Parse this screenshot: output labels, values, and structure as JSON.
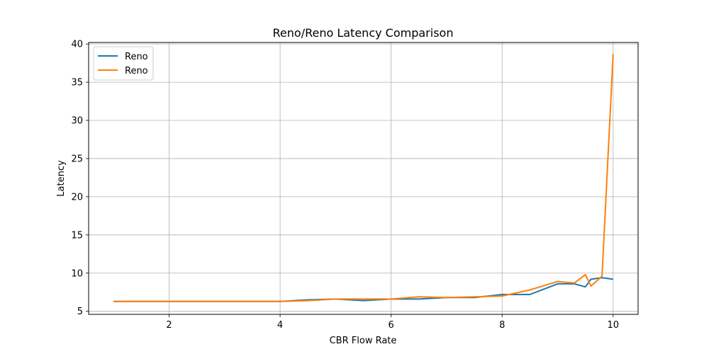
{
  "chart_data": {
    "type": "line",
    "title": "Reno/Reno Latency Comparison",
    "xlabel": "CBR Flow Rate",
    "ylabel": "Latency",
    "xlim": [
      0.55,
      10.45
    ],
    "ylim": [
      4.6,
      40.2
    ],
    "xticks": [
      2,
      4,
      6,
      8,
      10
    ],
    "yticks": [
      5,
      10,
      15,
      20,
      25,
      30,
      35,
      40
    ],
    "grid": true,
    "legend_position": "upper-left",
    "series": [
      {
        "name": "Reno",
        "color": "#1f77b4",
        "x": [
          1,
          1.5,
          2,
          2.5,
          3,
          3.5,
          4,
          4.5,
          5,
          5.5,
          6,
          6.5,
          7,
          7.5,
          8,
          8.5,
          9,
          9.3,
          9.5,
          9.6,
          9.8,
          10
        ],
        "y": [
          6.3,
          6.3,
          6.3,
          6.3,
          6.3,
          6.3,
          6.3,
          6.5,
          6.6,
          6.4,
          6.6,
          6.6,
          6.8,
          6.8,
          7.2,
          7.2,
          8.6,
          8.6,
          8.2,
          9.2,
          9.4,
          9.2
        ]
      },
      {
        "name": "Reno",
        "color": "#ff7f0e",
        "x": [
          1,
          1.5,
          2,
          2.5,
          3,
          3.5,
          4,
          4.5,
          5,
          5.5,
          6,
          6.5,
          7,
          7.5,
          8,
          8.5,
          9,
          9.3,
          9.5,
          9.6,
          9.8,
          10
        ],
        "y": [
          6.3,
          6.3,
          6.3,
          6.3,
          6.3,
          6.3,
          6.3,
          6.4,
          6.6,
          6.6,
          6.6,
          6.9,
          6.8,
          6.9,
          7.0,
          7.8,
          8.9,
          8.7,
          9.8,
          8.3,
          9.6,
          38.7
        ]
      }
    ]
  }
}
